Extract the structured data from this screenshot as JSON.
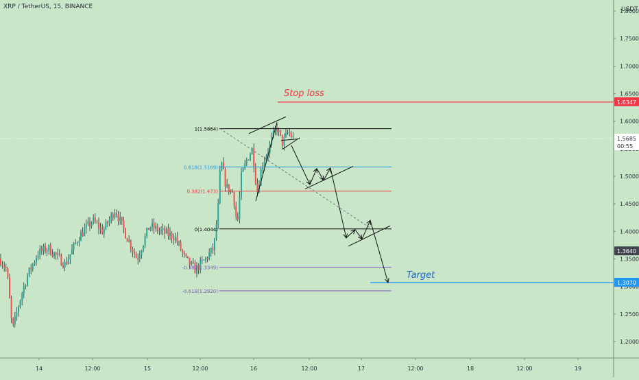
{
  "header": {
    "symbol": "XRP / TetherUS, 15, BINANCE",
    "currency": "USDT"
  },
  "chart_data": {
    "type": "candlestick",
    "ylim": [
      1.17,
      1.82
    ],
    "y_ticks": [
      "1.2000",
      "1.2500",
      "1.3000",
      "1.3500",
      "1.4000",
      "1.4500",
      "1.5000",
      "1.5500",
      "1.6000",
      "1.6500",
      "1.7000",
      "1.7500",
      "1.8000"
    ],
    "x_ticks": [
      "14",
      "12:00",
      "15",
      "12:00",
      "16",
      "12:00",
      "17",
      "12:00",
      "18",
      "12:00",
      "19"
    ],
    "price_labels": [
      {
        "text": "1.6347",
        "value": 1.6347,
        "color": "#f23645"
      },
      {
        "text": "1.5685",
        "value": 1.5685,
        "color": "#ffffff",
        "sub": "00:55"
      },
      {
        "text": "1.3640",
        "value": 1.364,
        "color": "#434651"
      },
      {
        "text": "1.3070",
        "value": 1.307,
        "color": "#2196f3"
      }
    ],
    "annotations": {
      "stop_loss": {
        "text": "Stop loss",
        "value": 1.6347,
        "color": "#f23645"
      },
      "target": {
        "text": "Target",
        "value": 1.307,
        "color": "#2196f3"
      }
    },
    "fib_levels": [
      {
        "label": "1(1.5864)",
        "value": 1.5864,
        "color": "#000000"
      },
      {
        "label": "0.618(1.5169)",
        "value": 1.5169,
        "color": "#2196f3"
      },
      {
        "label": "0.382(1.473)",
        "value": 1.473,
        "color": "#f23645"
      },
      {
        "label": "0(1.4044)",
        "value": 1.4044,
        "color": "#000000"
      },
      {
        "label": "-0.382(1.3349)",
        "value": 1.3349,
        "color": "#7e57c2"
      },
      {
        "label": "-0.618(1.2920)",
        "value": 1.292,
        "color": "#7e57c2"
      }
    ],
    "colors": {
      "bg": "#c9e6c9",
      "up": "#26a69a",
      "down": "#ef5350",
      "wick": "#2a2e39"
    }
  }
}
